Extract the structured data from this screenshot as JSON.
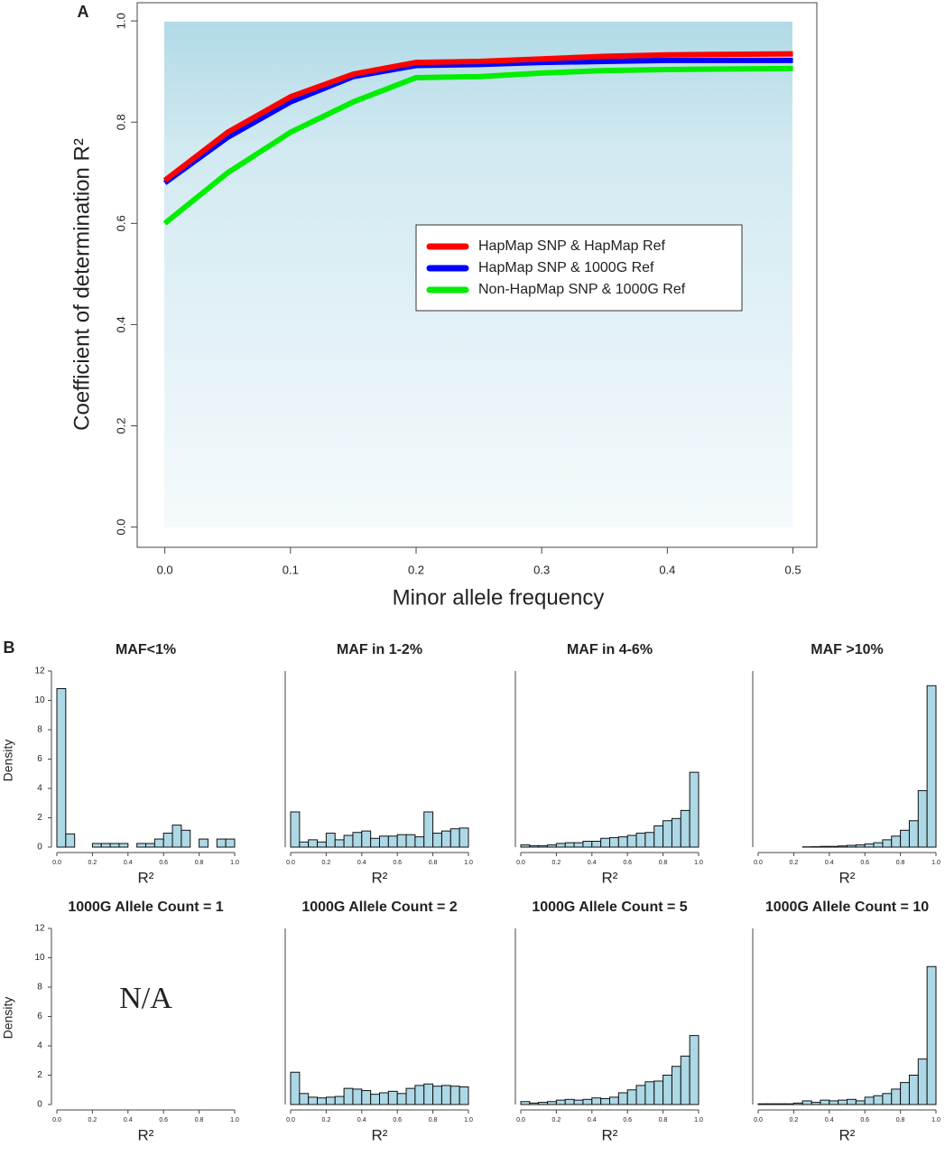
{
  "chart_data": [
    {
      "type": "line",
      "panel_label": "A",
      "xlabel": "Minor allele frequency",
      "ylabel": "Coefficient of determination R²",
      "x": [
        0.0,
        0.05,
        0.1,
        0.15,
        0.2,
        0.25,
        0.3,
        0.35,
        0.4,
        0.45,
        0.5
      ],
      "series": [
        {
          "name": "HapMap SNP & HapMap Ref",
          "color": "#ff0000",
          "values": [
            0.685,
            0.78,
            0.85,
            0.895,
            0.918,
            0.92,
            0.925,
            0.93,
            0.933,
            0.934,
            0.935
          ]
        },
        {
          "name": "HapMap SNP & 1000G Ref",
          "color": "#0000ff",
          "values": [
            0.68,
            0.77,
            0.84,
            0.89,
            0.912,
            0.914,
            0.918,
            0.92,
            0.922,
            0.922,
            0.922
          ]
        },
        {
          "name": "Non-HapMap SNP & 1000G Ref",
          "color": "#00ee00",
          "values": [
            0.6,
            0.7,
            0.78,
            0.84,
            0.888,
            0.89,
            0.897,
            0.902,
            0.904,
            0.905,
            0.906
          ]
        }
      ],
      "xlim": [
        -0.022,
        0.519
      ],
      "ylim": [
        -0.04,
        1.036
      ],
      "xticks": [
        {
          "value": 0,
          "label": "0.0"
        },
        0.1,
        0.2,
        0.3,
        0.4,
        0.5
      ],
      "yticks": [
        {
          "value": 0,
          "label": "0.0"
        },
        0.2,
        0.4,
        0.6,
        0.8,
        {
          "value": 1,
          "label": "1.0"
        }
      ],
      "legend": "center-right"
    },
    {
      "type": "histogram",
      "panel_label": "B",
      "title": "MAF<1%",
      "xlabel": "R²",
      "ylabel": "Density",
      "color": "#add8e6",
      "bins": [
        0,
        0.05,
        0.1,
        0.15,
        0.2,
        0.25,
        0.3,
        0.35,
        0.4,
        0.45,
        0.5,
        0.55,
        0.6,
        0.65,
        0.7,
        0.75,
        0.8,
        0.85,
        0.9,
        0.95,
        1
      ],
      "values": [
        10.8,
        0.9,
        0,
        0,
        0.25,
        0.25,
        0.25,
        0.25,
        0,
        0.25,
        0.25,
        0.55,
        0.95,
        1.5,
        1.15,
        0,
        0.55,
        0,
        0.55,
        0.55
      ],
      "ylim": [
        0,
        12
      ],
      "yticks": [
        0,
        2,
        4,
        6,
        8,
        10,
        12
      ],
      "xticks": [
        {
          "value": 0,
          "label": "0.0"
        },
        0.2,
        0.4,
        0.6,
        0.8,
        {
          "value": 1,
          "label": "1.0"
        }
      ]
    },
    {
      "type": "histogram",
      "title": "MAF in 1-2%",
      "xlabel": "R²",
      "color": "#add8e6",
      "bins": [
        0,
        0.05,
        0.1,
        0.15,
        0.2,
        0.25,
        0.3,
        0.35,
        0.4,
        0.45,
        0.5,
        0.55,
        0.6,
        0.65,
        0.7,
        0.75,
        0.8,
        0.85,
        0.9,
        0.95,
        1
      ],
      "values": [
        2.4,
        0.35,
        0.5,
        0.35,
        0.95,
        0.5,
        0.8,
        1.0,
        1.1,
        0.6,
        0.75,
        0.75,
        0.85,
        0.85,
        0.7,
        2.4,
        0.95,
        1.1,
        1.25,
        1.3
      ],
      "ylim": [
        0,
        12
      ],
      "xticks": [
        {
          "value": 0,
          "label": "0.0"
        },
        0.2,
        0.4,
        0.6,
        0.8,
        {
          "value": 1,
          "label": "1.0"
        }
      ]
    },
    {
      "type": "histogram",
      "title": "MAF in 4-6%",
      "xlabel": "R²",
      "color": "#add8e6",
      "bins": [
        0,
        0.05,
        0.1,
        0.15,
        0.2,
        0.25,
        0.3,
        0.35,
        0.4,
        0.45,
        0.5,
        0.55,
        0.6,
        0.65,
        0.7,
        0.75,
        0.8,
        0.85,
        0.9,
        0.95,
        1
      ],
      "values": [
        0.15,
        0.1,
        0.1,
        0.15,
        0.25,
        0.3,
        0.3,
        0.4,
        0.4,
        0.6,
        0.65,
        0.7,
        0.8,
        0.95,
        1.0,
        1.45,
        1.8,
        1.95,
        2.5,
        5.1
      ],
      "ylim": [
        0,
        12
      ],
      "xticks": [
        {
          "value": 0,
          "label": "0.0"
        },
        0.2,
        0.4,
        0.6,
        0.8,
        {
          "value": 1,
          "label": "1.0"
        }
      ]
    },
    {
      "type": "histogram",
      "title": "MAF >10%",
      "xlabel": "R²",
      "color": "#add8e6",
      "bins": [
        0,
        0.05,
        0.1,
        0.15,
        0.2,
        0.25,
        0.3,
        0.35,
        0.4,
        0.45,
        0.5,
        0.55,
        0.6,
        0.65,
        0.7,
        0.75,
        0.8,
        0.85,
        0.9,
        0.95,
        1
      ],
      "values": [
        0,
        0,
        0,
        0,
        0,
        0.02,
        0.03,
        0.05,
        0.05,
        0.08,
        0.12,
        0.15,
        0.22,
        0.3,
        0.5,
        0.75,
        1.15,
        1.8,
        3.85,
        11.0
      ],
      "ylim": [
        0,
        12
      ],
      "xticks": [
        {
          "value": 0,
          "label": "0.0"
        },
        0.2,
        0.4,
        0.6,
        0.8,
        {
          "value": 1,
          "label": "1.0"
        }
      ]
    },
    {
      "type": "histogram",
      "title": "1000G Allele Count = 1",
      "xlabel": "R²",
      "ylabel": "Density",
      "annotation": "N/A",
      "ylim": [
        0,
        12
      ],
      "yticks": [
        0,
        2,
        4,
        6,
        8,
        10,
        12
      ],
      "xticks": [
        {
          "value": 0,
          "label": "0.0"
        },
        0.2,
        0.4,
        0.6,
        0.8,
        {
          "value": 1,
          "label": "1.0"
        }
      ]
    },
    {
      "type": "histogram",
      "title": "1000G Allele Count = 2",
      "xlabel": "R²",
      "color": "#add8e6",
      "bins": [
        0,
        0.05,
        0.1,
        0.15,
        0.2,
        0.25,
        0.3,
        0.35,
        0.4,
        0.45,
        0.5,
        0.55,
        0.6,
        0.65,
        0.7,
        0.75,
        0.8,
        0.85,
        0.9,
        0.95,
        1
      ],
      "values": [
        2.2,
        0.75,
        0.5,
        0.45,
        0.5,
        0.55,
        1.1,
        1.05,
        0.95,
        0.7,
        0.8,
        0.9,
        0.75,
        1.1,
        1.3,
        1.4,
        1.25,
        1.3,
        1.25,
        1.2
      ],
      "ylim": [
        0,
        12
      ],
      "xticks": [
        {
          "value": 0,
          "label": "0.0"
        },
        0.2,
        0.4,
        0.6,
        0.8,
        {
          "value": 1,
          "label": "1.0"
        }
      ]
    },
    {
      "type": "histogram",
      "title": "1000G Allele Count = 5",
      "xlabel": "R²",
      "color": "#add8e6",
      "bins": [
        0,
        0.05,
        0.1,
        0.15,
        0.2,
        0.25,
        0.3,
        0.35,
        0.4,
        0.45,
        0.5,
        0.55,
        0.6,
        0.65,
        0.7,
        0.75,
        0.8,
        0.85,
        0.9,
        0.95,
        1
      ],
      "values": [
        0.2,
        0.1,
        0.15,
        0.2,
        0.3,
        0.35,
        0.3,
        0.35,
        0.45,
        0.4,
        0.5,
        0.8,
        1.0,
        1.3,
        1.55,
        1.6,
        2.0,
        2.6,
        3.3,
        4.7
      ],
      "ylim": [
        0,
        12
      ],
      "xticks": [
        {
          "value": 0,
          "label": "0.0"
        },
        0.2,
        0.4,
        0.6,
        0.8,
        {
          "value": 1,
          "label": "1.0"
        }
      ]
    },
    {
      "type": "histogram",
      "title": "1000G Allele Count = 10",
      "xlabel": "R²",
      "color": "#add8e6",
      "bins": [
        0,
        0.05,
        0.1,
        0.15,
        0.2,
        0.25,
        0.3,
        0.35,
        0.4,
        0.45,
        0.5,
        0.55,
        0.6,
        0.65,
        0.7,
        0.75,
        0.8,
        0.85,
        0.9,
        0.95,
        1
      ],
      "values": [
        0.05,
        0.05,
        0.05,
        0.05,
        0.1,
        0.25,
        0.15,
        0.3,
        0.25,
        0.3,
        0.35,
        0.25,
        0.5,
        0.6,
        0.75,
        1.05,
        1.5,
        2.0,
        3.1,
        9.4
      ],
      "ylim": [
        0,
        12
      ],
      "xticks": [
        {
          "value": 0,
          "label": "0.0"
        },
        0.2,
        0.4,
        0.6,
        0.8,
        {
          "value": 1,
          "label": "1.0"
        }
      ]
    }
  ]
}
